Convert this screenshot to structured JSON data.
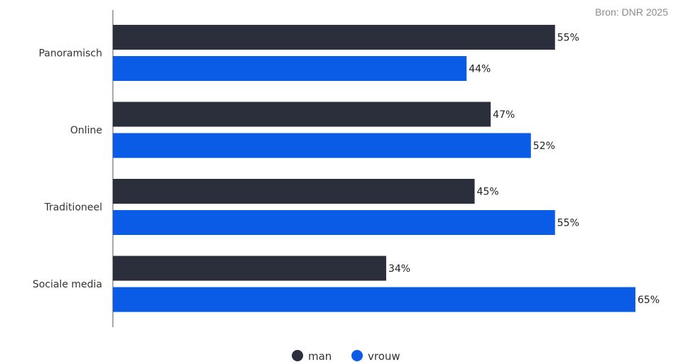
{
  "source": "Bron: DNR 2025",
  "colors": {
    "man": "#2b2f3b",
    "vrouw": "#0a5ce6",
    "axis": "#555555"
  },
  "legend": [
    {
      "key": "man",
      "label": "man"
    },
    {
      "key": "vrouw",
      "label": "vrouw"
    }
  ],
  "chart_data": {
    "type": "bar",
    "orientation": "horizontal",
    "categories": [
      "Panoramisch",
      "Online",
      "Traditioneel",
      "Sociale media"
    ],
    "series": [
      {
        "name": "man",
        "values": [
          55,
          47,
          45,
          34
        ]
      },
      {
        "name": "vrouw",
        "values": [
          44,
          52,
          55,
          65
        ]
      }
    ],
    "value_format": "%",
    "xlim": [
      0,
      65
    ],
    "legend_position": "bottom-center",
    "grid": false
  }
}
